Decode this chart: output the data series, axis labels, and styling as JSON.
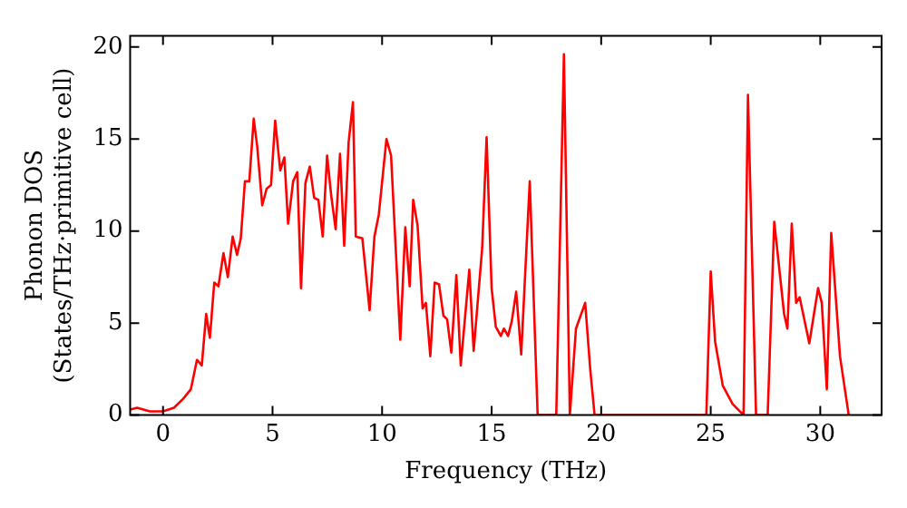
{
  "chart_data": {
    "type": "line",
    "xlabel": "Frequency (THz)",
    "ylabel": "Phonon DOS\n(States/THz·primitive cell)",
    "xlim": [
      -1.5,
      32.8
    ],
    "ylim": [
      0,
      20.6
    ],
    "xticks": [
      0,
      5,
      10,
      15,
      20,
      25,
      30
    ],
    "yticks": [
      0,
      5,
      10,
      15,
      20
    ],
    "grid": false,
    "legend": false,
    "marker": "none",
    "line_style": "solid",
    "series": [
      {
        "color": "#ff0000",
        "x": [
          -1.5,
          -1.18,
          -0.6,
          0,
          0.5,
          0.93,
          1.27,
          1.55,
          1.77,
          1.97,
          2.14,
          2.34,
          2.53,
          2.76,
          2.96,
          3.18,
          3.38,
          3.55,
          3.74,
          3.94,
          4.14,
          4.3,
          4.53,
          4.73,
          4.93,
          5.12,
          5.35,
          5.54,
          5.71,
          5.94,
          6.13,
          6.3,
          6.5,
          6.7,
          6.9,
          7.09,
          7.29,
          7.49,
          7.68,
          7.88,
          8.08,
          8.27,
          8.47,
          8.67,
          8.8,
          9.1,
          9.43,
          9.65,
          9.85,
          10.2,
          10.41,
          10.83,
          11.06,
          11.26,
          11.42,
          11.62,
          11.85,
          12.0,
          12.2,
          12.4,
          12.6,
          12.8,
          12.97,
          13.16,
          13.39,
          13.59,
          13.98,
          14.18,
          14.57,
          14.77,
          15.0,
          15.19,
          15.42,
          15.56,
          15.75,
          15.92,
          16.12,
          16.35,
          16.74,
          17.1,
          17.95,
          18.3,
          18.57,
          18.85,
          19.27,
          19.5,
          19.7,
          24.8,
          25.0,
          25.2,
          25.55,
          26.0,
          26.5,
          26.7,
          27.07,
          27.6,
          27.9,
          28.35,
          28.5,
          28.7,
          28.9,
          29.06,
          29.5,
          29.9,
          30.07,
          30.3,
          30.5,
          30.9,
          31.3
        ],
        "values": [
          0.3,
          0.4,
          0.2,
          0.2,
          0.4,
          0.9,
          1.4,
          3.0,
          2.7,
          5.5,
          4.2,
          7.2,
          7.0,
          8.8,
          7.5,
          9.7,
          8.7,
          9.6,
          12.7,
          12.7,
          16.1,
          14.6,
          11.4,
          12.3,
          12.5,
          16.0,
          13.3,
          14.0,
          10.4,
          12.7,
          13.2,
          6.9,
          12.6,
          13.5,
          11.8,
          11.7,
          9.7,
          14.1,
          11.9,
          10.1,
          14.2,
          9.2,
          14.8,
          17.0,
          9.7,
          9.6,
          5.7,
          9.7,
          10.9,
          15.0,
          14.1,
          4.1,
          10.2,
          7.0,
          11.7,
          10.3,
          5.8,
          6.1,
          3.2,
          7.2,
          7.1,
          5.4,
          5.2,
          3.4,
          7.6,
          2.7,
          7.9,
          3.5,
          9.1,
          15.1,
          6.9,
          4.8,
          4.3,
          4.7,
          4.3,
          5.1,
          6.7,
          3.3,
          12.7,
          0,
          0,
          19.6,
          0,
          4.7,
          6.1,
          2.5,
          0,
          0,
          7.8,
          4.0,
          1.6,
          0.6,
          0,
          17.4,
          0,
          0,
          10.5,
          5.5,
          4.7,
          10.4,
          6.1,
          6.4,
          3.9,
          6.9,
          6.1,
          1.4,
          9.9,
          3.2,
          0
        ]
      }
    ]
  }
}
